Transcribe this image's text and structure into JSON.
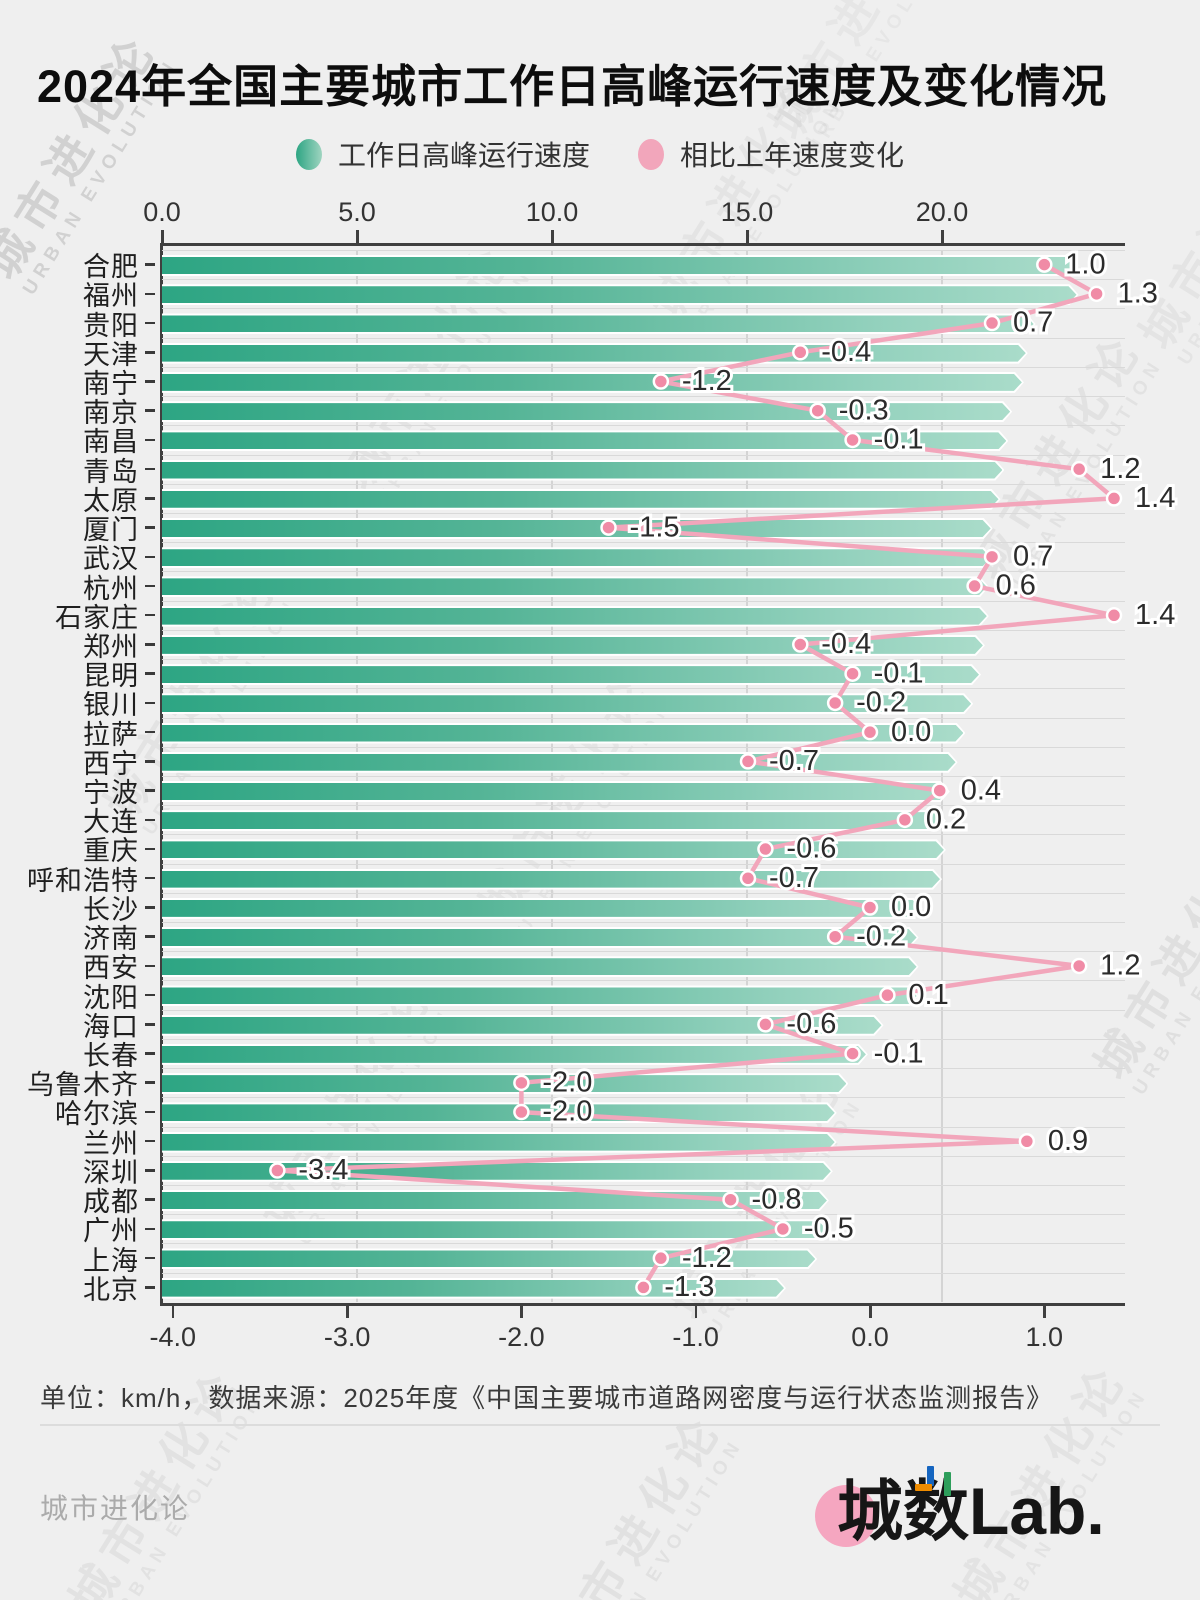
{
  "title": "2024年全国主要城市工作日高峰运行速度及变化情况",
  "legend": {
    "items": [
      {
        "label": "工作日高峰运行速度",
        "type": "bar"
      },
      {
        "label": "相比上年速度变化",
        "type": "line"
      }
    ]
  },
  "colors": {
    "background": "#efefef",
    "bar_gradient_start": "#2da583",
    "bar_gradient_end": "#aadcca",
    "line_pink": "#f2a6bb",
    "dot_pink": "#f08ba6",
    "axis": "#3f3f3f",
    "grid": "#d9d9d9",
    "label_halo": "#ffffff"
  },
  "chart_data": {
    "type": "bar",
    "orientation": "horizontal",
    "unit": "km/h",
    "title": "2024年全国主要城市工作日高峰运行速度及变化情况",
    "categories": [
      "合肥",
      "福州",
      "贵阳",
      "天津",
      "南宁",
      "南京",
      "南昌",
      "青岛",
      "太原",
      "厦门",
      "武汉",
      "杭州",
      "石家庄",
      "郑州",
      "昆明",
      "银川",
      "拉萨",
      "西宁",
      "宁波",
      "大连",
      "重庆",
      "呼和浩特",
      "长沙",
      "济南",
      "西安",
      "沈阳",
      "海口",
      "长春",
      "乌鲁木齐",
      "哈尔滨",
      "兰州",
      "深圳",
      "成都",
      "广州",
      "上海",
      "北京"
    ],
    "series": [
      {
        "name": "工作日高峰运行速度",
        "type": "bar",
        "axis": "top",
        "values": [
          23.5,
          23.5,
          22.4,
          22.2,
          22.1,
          21.8,
          21.7,
          21.6,
          21.5,
          21.3,
          21.3,
          21.2,
          21.2,
          21.1,
          21.0,
          20.8,
          20.6,
          20.4,
          20.2,
          20.1,
          20.1,
          20.0,
          19.5,
          19.4,
          19.4,
          19.4,
          18.5,
          18.1,
          17.6,
          17.3,
          17.3,
          17.2,
          17.1,
          17.1,
          16.8,
          16.0
        ]
      },
      {
        "name": "相比上年速度变化",
        "type": "line",
        "axis": "bottom",
        "values": [
          1.0,
          1.3,
          0.7,
          -0.4,
          -1.2,
          -0.3,
          -0.1,
          1.2,
          1.4,
          -1.5,
          0.7,
          0.6,
          1.4,
          -0.4,
          -0.1,
          -0.2,
          0.0,
          -0.7,
          0.4,
          0.2,
          -0.6,
          -0.7,
          0.0,
          -0.2,
          1.2,
          0.1,
          -0.6,
          -0.1,
          -2.0,
          -2.0,
          0.9,
          -3.4,
          -0.8,
          -0.5,
          -1.2,
          -1.3
        ]
      }
    ],
    "top_axis": {
      "ticks": [
        "0.0",
        "5.0",
        "10.0",
        "15.0",
        "20.0"
      ],
      "tick_values": [
        0,
        5,
        10,
        15,
        20
      ],
      "range": [
        0,
        24.7
      ],
      "grid": true
    },
    "bottom_axis": {
      "ticks": [
        "-4.0",
        "-3.0",
        "-2.0",
        "-1.0",
        "0.0",
        "1.0"
      ],
      "tick_values": [
        -4,
        -3,
        -2,
        -1,
        0,
        1
      ],
      "range": [
        -4.05,
        1.46
      ],
      "grid": false
    },
    "legend_position": "top"
  },
  "footer": {
    "note": "单位：km/h，数据来源：2025年度《中国主要城市道路网密度与运行状态监测报告》",
    "brand_left": "城市进化论",
    "logo_text": "城数Lab."
  },
  "watermark": {
    "line1": "城市进化论",
    "line2": "URBAN EVOLUTION"
  }
}
